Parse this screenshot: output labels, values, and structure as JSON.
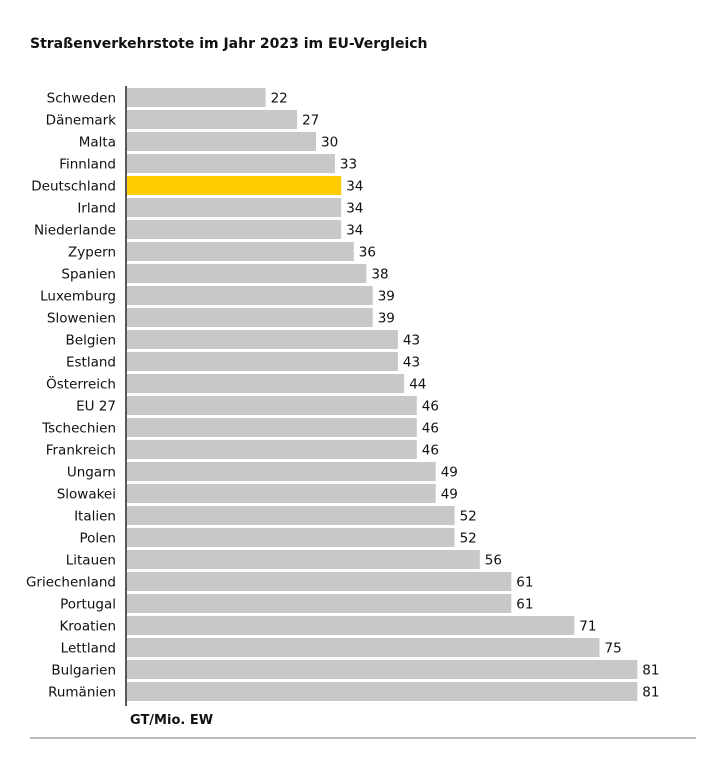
{
  "chart_data": {
    "type": "bar",
    "orientation": "horizontal",
    "title": "Straßenverkehrstote im Jahr 2023 im EU-Vergleich",
    "unit_label": "GT/Mio. EW",
    "categories": [
      "Schweden",
      "Dänemark",
      "Malta",
      "Finnland",
      "Deutschland",
      "Irland",
      "Niederlande",
      "Zypern",
      "Spanien",
      "Luxemburg",
      "Slowenien",
      "Belgien",
      "Estland",
      "Österreich",
      "EU 27",
      "Tschechien",
      "Frankreich",
      "Ungarn",
      "Slowakei",
      "Italien",
      "Polen",
      "Litauen",
      "Griechenland",
      "Portugal",
      "Kroatien",
      "Lettland",
      "Bulgarien",
      "Rumänien"
    ],
    "values": [
      22,
      27,
      30,
      33,
      34,
      34,
      34,
      36,
      38,
      39,
      39,
      43,
      43,
      44,
      46,
      46,
      46,
      49,
      49,
      52,
      52,
      56,
      61,
      61,
      71,
      75,
      81,
      81
    ],
    "highlight": "Deutschland",
    "colors": {
      "bar": "#c8c8c8",
      "highlight": "#ffcc00",
      "axis": "#222222",
      "rule": "#bdbdbd"
    },
    "grid": false,
    "legend": "none"
  }
}
